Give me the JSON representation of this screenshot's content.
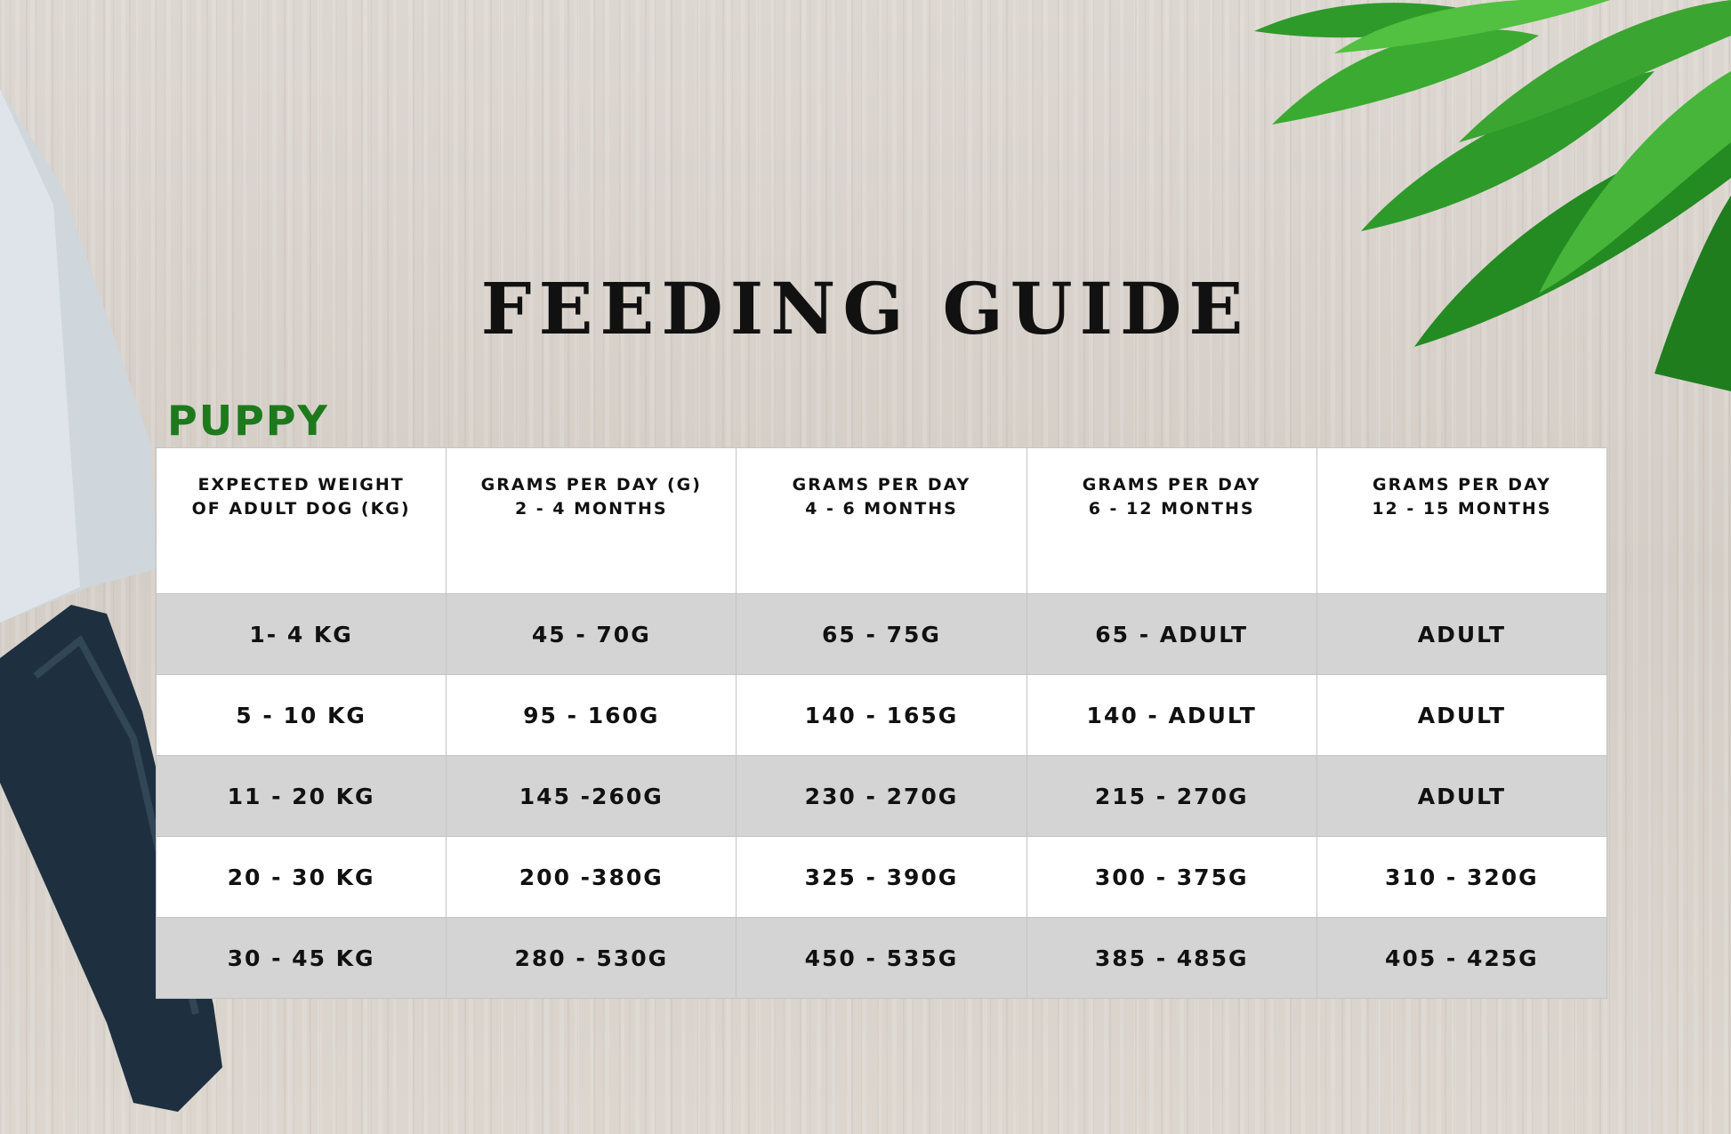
{
  "title": "FEEDING GUIDE",
  "section": "PUPPY",
  "colors": {
    "section": "#1c7a1c",
    "row_shaded": "#d4d4d4",
    "knife_handle": "#1e3040",
    "leaves": "#2e9a2a"
  },
  "table": {
    "headers": [
      [
        "EXPECTED WEIGHT",
        "OF ADULT DOG (KG)"
      ],
      [
        "GRAMS PER DAY (G)",
        "2 - 4 MONTHS"
      ],
      [
        "GRAMS PER DAY",
        "4 - 6 MONTHS"
      ],
      [
        "GRAMS PER DAY",
        "6 - 12 MONTHS"
      ],
      [
        "GRAMS PER DAY",
        "12 - 15 MONTHS"
      ]
    ],
    "rows": [
      [
        "1- 4 KG",
        "45 - 70G",
        "65 - 75G",
        "65 - ADULT",
        "ADULT"
      ],
      [
        "5 - 10 KG",
        "95 - 160G",
        "140 - 165G",
        "140 - ADULT",
        "ADULT"
      ],
      [
        "11 - 20 KG",
        "145 -260G",
        "230 - 270G",
        "215 - 270G",
        "ADULT"
      ],
      [
        "20 - 30 KG",
        "200 -380G",
        "325 - 390G",
        "300 - 375G",
        "310 - 320G"
      ],
      [
        "30 - 45 KG",
        "280 - 530G",
        "450 - 535G",
        "385 - 485G",
        "405 - 425G"
      ]
    ]
  }
}
